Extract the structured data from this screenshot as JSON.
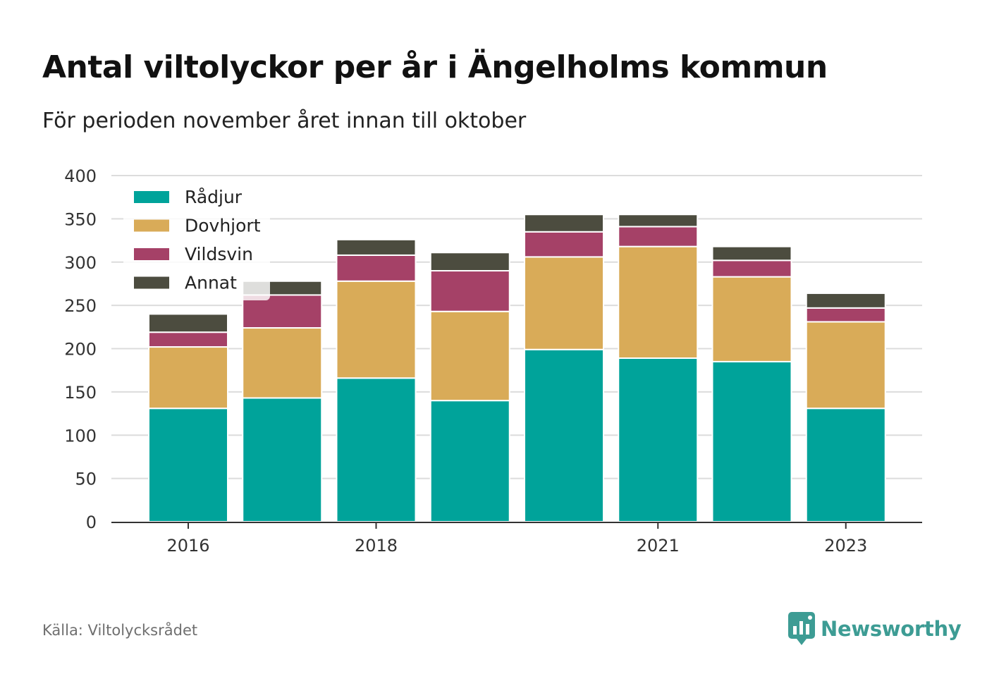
{
  "title": "Antal viltolyckor per år i Ängelholms kommun",
  "subtitle": "För perioden november året innan till oktober",
  "source": "Källa: Viltolycksrådet",
  "brand": {
    "name": "Newsworthy",
    "icon": "newsworthy-chart-bubble-icon",
    "color": "#3d9c94"
  },
  "chart_data": {
    "type": "bar",
    "stacked": true,
    "x": [
      2016,
      2017,
      2018,
      2019,
      2020,
      2021,
      2022,
      2023
    ],
    "x_tick_labels": [
      "2016",
      "2018",
      "2021",
      "2023"
    ],
    "x_tick_values": [
      2016,
      2018,
      2021,
      2023
    ],
    "ylim": [
      0,
      400
    ],
    "y_ticks": [
      0,
      50,
      100,
      150,
      200,
      250,
      300,
      350,
      400
    ],
    "grid": true,
    "legend_position": "top-left",
    "series": [
      {
        "name": "Rådjur",
        "color": "#00a39a",
        "values": [
          131,
          143,
          166,
          140,
          199,
          189,
          185,
          131
        ]
      },
      {
        "name": "Dovhjort",
        "color": "#d9ab58",
        "values": [
          71,
          81,
          112,
          103,
          107,
          129,
          98,
          100
        ]
      },
      {
        "name": "Vildsvin",
        "color": "#a54167",
        "values": [
          17,
          38,
          30,
          47,
          29,
          23,
          19,
          16
        ]
      },
      {
        "name": "Annat",
        "color": "#4c4c3f",
        "values": [
          21,
          16,
          18,
          21,
          20,
          14,
          16,
          17
        ]
      }
    ]
  }
}
